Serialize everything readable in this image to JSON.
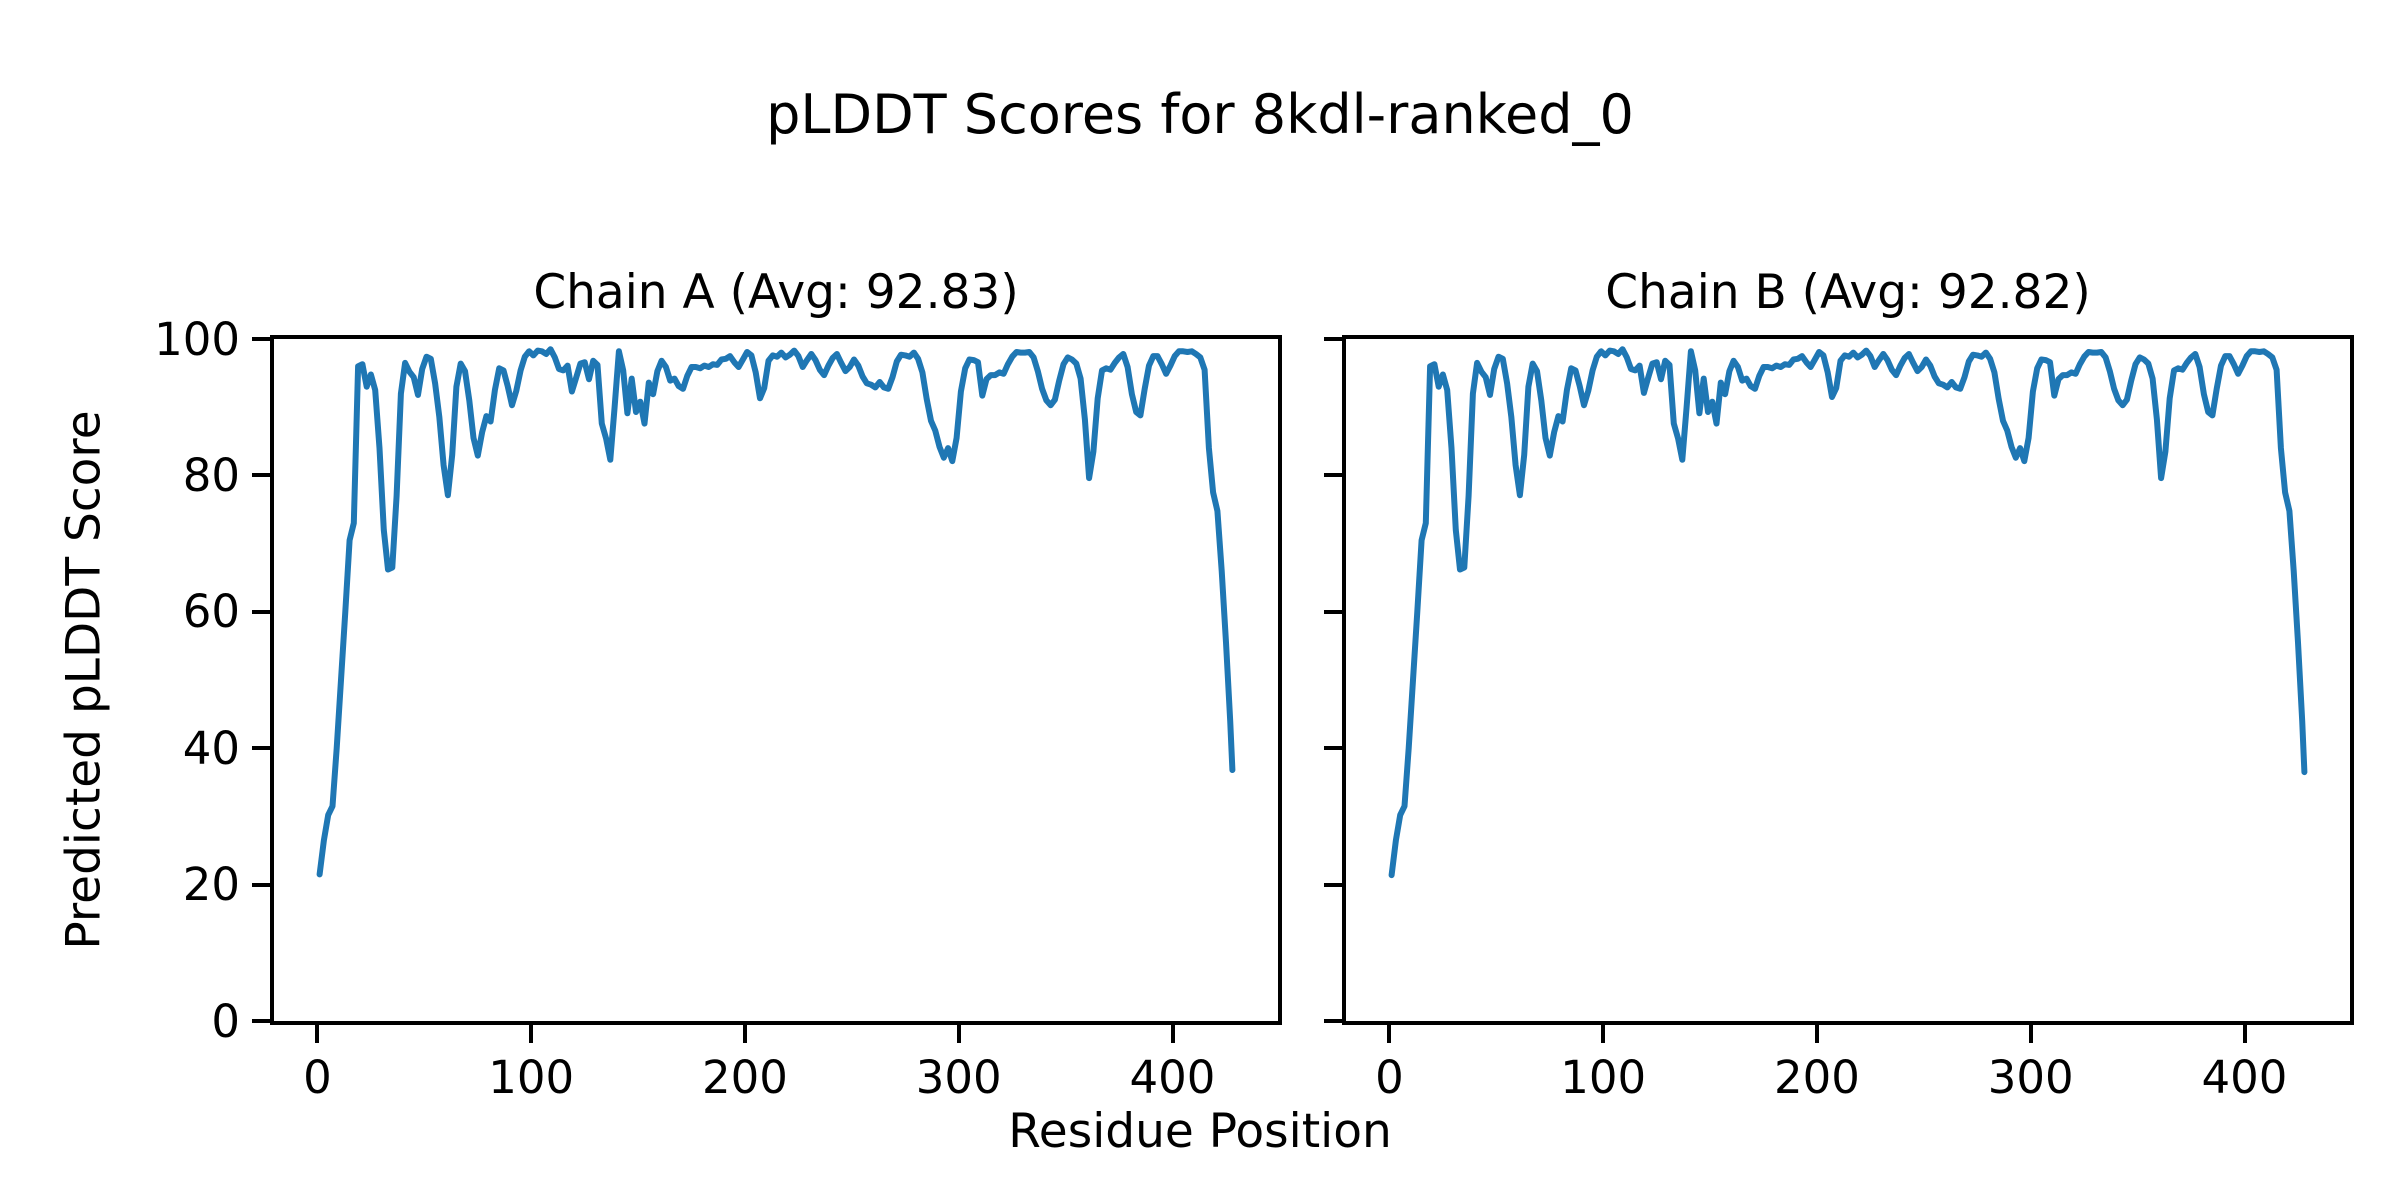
{
  "figure": {
    "title": "pLDDT Scores for 8kdl-ranked_0",
    "xlabel": "Residue Position",
    "ylabel": "Predicted pLDDT Score",
    "background_color": "#ffffff",
    "axis_color": "#000000",
    "line_color": "#1f77b4"
  },
  "chart_data": [
    {
      "type": "line",
      "title": "Chain A (Avg: 92.83)",
      "chain": "A",
      "average_plddt": 92.83,
      "xlim": [
        -20.35,
        449.35
      ],
      "ylim": [
        0,
        100
      ],
      "xticks": [
        0,
        100,
        200,
        300,
        400
      ],
      "yticks": [
        0,
        20,
        40,
        60,
        80,
        100
      ],
      "show_ytick_labels": true,
      "grid": false,
      "series": [
        {
          "name": "pLDDT",
          "color": "#1f77b4",
          "x": [
            1,
            3,
            5,
            7,
            9,
            11,
            13,
            15,
            17,
            19,
            21,
            23,
            25,
            27,
            29,
            31,
            33,
            35,
            37,
            39,
            41,
            43,
            45,
            47,
            49,
            51,
            53,
            55,
            57,
            59,
            61,
            63,
            65,
            67,
            69,
            71,
            73,
            75,
            77,
            79,
            81,
            83,
            85,
            87,
            89,
            91,
            93,
            95,
            97,
            99,
            101,
            103,
            105,
            107,
            109,
            111,
            113,
            115,
            117,
            119,
            121,
            123,
            125,
            127,
            129,
            131,
            133,
            135,
            137,
            139,
            141,
            143,
            145,
            147,
            149,
            151,
            153,
            155,
            157,
            159,
            161,
            163,
            165,
            167,
            169,
            171,
            173,
            175,
            177,
            179,
            181,
            183,
            185,
            187,
            189,
            191,
            193,
            195,
            197,
            199,
            201,
            203,
            205,
            207,
            209,
            211,
            213,
            215,
            217,
            219,
            221,
            223,
            225,
            227,
            229,
            231,
            233,
            235,
            237,
            239,
            241,
            243,
            245,
            247,
            249,
            251,
            253,
            255,
            257,
            259,
            261,
            263,
            265,
            267,
            269,
            271,
            273,
            275,
            277,
            279,
            281,
            283,
            285,
            287,
            289,
            291,
            293,
            295,
            297,
            299,
            301,
            303,
            305,
            307,
            309,
            311,
            313,
            315,
            317,
            319,
            321,
            323,
            325,
            327,
            329,
            331,
            333,
            335,
            337,
            339,
            341,
            343,
            345,
            347,
            349,
            351,
            353,
            355,
            357,
            359,
            361,
            363,
            365,
            367,
            369,
            371,
            373,
            375,
            377,
            379,
            381,
            383,
            385,
            387,
            389,
            391,
            393,
            395,
            397,
            399,
            401,
            403,
            405,
            407,
            409,
            411,
            413,
            415,
            417,
            419,
            421,
            423,
            425,
            427,
            428
          ],
          "y": [
            21.5,
            26.5,
            30.2,
            31.5,
            40,
            50,
            60,
            70.5,
            73,
            96,
            96.3,
            93,
            94.8,
            92.5,
            84,
            72,
            66.2,
            66.5,
            77,
            92,
            96.5,
            95.2,
            94.4,
            91.8,
            95.6,
            97.4,
            97.1,
            93.5,
            88.6,
            81.5,
            77.1,
            83,
            93,
            96.4,
            95.3,
            91,
            85.5,
            82.9,
            86.3,
            88.7,
            87.9,
            92.5,
            95.7,
            95.4,
            93.1,
            90.3,
            92.4,
            95.4,
            97.4,
            98.2,
            97.6,
            98.3,
            98.2,
            97.8,
            98.5,
            97.3,
            95.6,
            95.4,
            96.1,
            92.3,
            94.3,
            96.4,
            96.6,
            94.1,
            96.8,
            96.2,
            87.6,
            85.4,
            82.3,
            90,
            98.2,
            95.4,
            89.1,
            94.2,
            89.3,
            90.8,
            87.6,
            93.6,
            91.9,
            95.3,
            96.8,
            95.9,
            93.9,
            94.2,
            93.1,
            92.7,
            94.6,
            95.9,
            95.9,
            95.7,
            96.1,
            95.9,
            96.3,
            96.2,
            97,
            97.1,
            97.5,
            96.6,
            95.9,
            97,
            98.1,
            97.6,
            95.1,
            91.3,
            92.8,
            96.8,
            97.6,
            97.4,
            98,
            97.3,
            97.7,
            98.3,
            97.5,
            95.9,
            96.9,
            97.8,
            96.9,
            95.5,
            94.7,
            96.1,
            97.2,
            97.8,
            96.5,
            95.3,
            95.9,
            97,
            96.1,
            94.5,
            93.5,
            93.3,
            92.9,
            93.7,
            92.9,
            92.7,
            94.4,
            96.7,
            97.7,
            97.6,
            97.4,
            98,
            97.1,
            95.1,
            91.2,
            88,
            86.6,
            84.2,
            82.6,
            84,
            82.1,
            85.5,
            92.3,
            95.7,
            97,
            96.9,
            96.6,
            91.7,
            94.1,
            94.7,
            94.7,
            95.1,
            94.9,
            96.3,
            97.4,
            98.1,
            98,
            98,
            98.1,
            97.3,
            95.3,
            92.7,
            91,
            90.3,
            91.1,
            93.9,
            96.3,
            97.3,
            97,
            96.4,
            94.2,
            88.2,
            79.6,
            83.5,
            91.3,
            95.4,
            95.7,
            95.5,
            96.5,
            97.3,
            97.8,
            95.9,
            91.9,
            89.3,
            88.8,
            92.7,
            96.1,
            97.5,
            97.5,
            96.3,
            94.9,
            96.1,
            97.5,
            98.2,
            98.2,
            98.1,
            98.2,
            97.8,
            97.3,
            95.5,
            84,
            77.5,
            74.8,
            66,
            55.5,
            44,
            36.8
          ]
        }
      ]
    },
    {
      "type": "line",
      "title": "Chain B (Avg: 92.82)",
      "chain": "B",
      "average_plddt": 92.82,
      "xlim": [
        -20.35,
        449.35
      ],
      "ylim": [
        0,
        100
      ],
      "xticks": [
        0,
        100,
        200,
        300,
        400
      ],
      "yticks": [
        0,
        20,
        40,
        60,
        80,
        100
      ],
      "show_ytick_labels": false,
      "grid": false,
      "series": [
        {
          "name": "pLDDT",
          "color": "#1f77b4",
          "x": [
            1,
            3,
            5,
            7,
            9,
            11,
            13,
            15,
            17,
            19,
            21,
            23,
            25,
            27,
            29,
            31,
            33,
            35,
            37,
            39,
            41,
            43,
            45,
            47,
            49,
            51,
            53,
            55,
            57,
            59,
            61,
            63,
            65,
            67,
            69,
            71,
            73,
            75,
            77,
            79,
            81,
            83,
            85,
            87,
            89,
            91,
            93,
            95,
            97,
            99,
            101,
            103,
            105,
            107,
            109,
            111,
            113,
            115,
            117,
            119,
            121,
            123,
            125,
            127,
            129,
            131,
            133,
            135,
            137,
            139,
            141,
            143,
            145,
            147,
            149,
            151,
            153,
            155,
            157,
            159,
            161,
            163,
            165,
            167,
            169,
            171,
            173,
            175,
            177,
            179,
            181,
            183,
            185,
            187,
            189,
            191,
            193,
            195,
            197,
            199,
            201,
            203,
            205,
            207,
            209,
            211,
            213,
            215,
            217,
            219,
            221,
            223,
            225,
            227,
            229,
            231,
            233,
            235,
            237,
            239,
            241,
            243,
            245,
            247,
            249,
            251,
            253,
            255,
            257,
            259,
            261,
            263,
            265,
            267,
            269,
            271,
            273,
            275,
            277,
            279,
            281,
            283,
            285,
            287,
            289,
            291,
            293,
            295,
            297,
            299,
            301,
            303,
            305,
            307,
            309,
            311,
            313,
            315,
            317,
            319,
            321,
            323,
            325,
            327,
            329,
            331,
            333,
            335,
            337,
            339,
            341,
            343,
            345,
            347,
            349,
            351,
            353,
            355,
            357,
            359,
            361,
            363,
            365,
            367,
            369,
            371,
            373,
            375,
            377,
            379,
            381,
            383,
            385,
            387,
            389,
            391,
            393,
            395,
            397,
            399,
            401,
            403,
            405,
            407,
            409,
            411,
            413,
            415,
            417,
            419,
            421,
            423,
            425,
            427,
            428
          ],
          "y": [
            21.4,
            26.5,
            30.2,
            31.5,
            40,
            50,
            60,
            70.5,
            73,
            96,
            96.3,
            93,
            94.8,
            92.5,
            84,
            72,
            66.2,
            66.5,
            77,
            92,
            96.5,
            95.2,
            94.4,
            91.8,
            95.6,
            97.4,
            97.1,
            93.5,
            88.6,
            81.5,
            77.1,
            83,
            93,
            96.4,
            95.3,
            91,
            85.5,
            82.9,
            86.3,
            88.7,
            87.9,
            92.5,
            95.7,
            95.4,
            93.1,
            90.3,
            92.4,
            95.4,
            97.4,
            98.2,
            97.6,
            98.3,
            98.2,
            97.8,
            98.5,
            97.3,
            95.6,
            95.4,
            96.1,
            92.1,
            94.3,
            96.4,
            96.6,
            94.1,
            96.8,
            96.2,
            87.6,
            85.4,
            82.3,
            90,
            98.2,
            95.4,
            89.1,
            94.2,
            89.3,
            90.8,
            87.6,
            93.6,
            91.9,
            95.3,
            96.8,
            95.9,
            93.9,
            94.2,
            93.1,
            92.7,
            94.6,
            95.9,
            95.9,
            95.7,
            96.1,
            95.9,
            96.3,
            96.2,
            97,
            97.1,
            97.5,
            96.6,
            95.9,
            97,
            98.1,
            97.6,
            95.1,
            91.5,
            92.8,
            96.8,
            97.6,
            97.4,
            98,
            97.3,
            97.7,
            98.3,
            97.5,
            95.9,
            96.9,
            97.8,
            96.9,
            95.5,
            94.7,
            96.1,
            97.2,
            97.8,
            96.5,
            95.3,
            95.9,
            97,
            96.1,
            94.5,
            93.5,
            93.3,
            92.9,
            93.7,
            92.9,
            92.7,
            94.4,
            96.7,
            97.7,
            97.6,
            97.4,
            98,
            97.1,
            95.1,
            91.2,
            88,
            86.6,
            84.2,
            82.6,
            84,
            82.1,
            85.5,
            92.3,
            95.7,
            97,
            96.9,
            96.6,
            91.7,
            94.1,
            94.7,
            94.7,
            95.1,
            94.9,
            96.3,
            97.4,
            98.1,
            98,
            98,
            98.1,
            97.3,
            95.3,
            92.7,
            91,
            90.3,
            91.1,
            93.9,
            96.3,
            97.3,
            97,
            96.4,
            94.2,
            88.2,
            79.6,
            83.5,
            91.3,
            95.4,
            95.7,
            95.5,
            96.5,
            97.3,
            97.8,
            95.9,
            91.9,
            89.3,
            88.8,
            92.7,
            96.1,
            97.5,
            97.5,
            96.3,
            94.9,
            96.1,
            97.5,
            98.2,
            98.2,
            98.1,
            98.2,
            97.8,
            97.3,
            95.5,
            84,
            77.5,
            74.8,
            66,
            55.5,
            44,
            36.5
          ]
        }
      ]
    }
  ]
}
